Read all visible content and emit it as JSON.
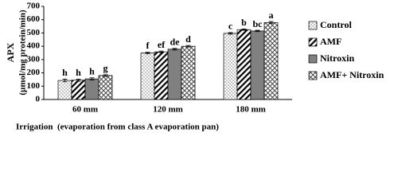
{
  "chart_data": {
    "type": "bar",
    "ylabel": [
      "APX",
      "(µmol/mg protein/min)"
    ],
    "xlabel": "Irrigation  (evaporation from class A evaporation pan)",
    "categories": [
      "60 mm",
      "120 mm",
      "180 mm"
    ],
    "ylim": [
      0,
      700
    ],
    "yticks": [
      0,
      100,
      200,
      300,
      400,
      500,
      600,
      700
    ],
    "series": [
      {
        "name": "Control",
        "color": "#ffffff",
        "pattern": "dots",
        "values": [
          143,
          350,
          497
        ],
        "errors": [
          10,
          6,
          6
        ],
        "letters": [
          "h",
          "f",
          "c"
        ]
      },
      {
        "name": "AMF",
        "color": "#ffffff",
        "pattern": "diagonal",
        "values": [
          145,
          358,
          525
        ],
        "errors": [
          8,
          6,
          5
        ],
        "letters": [
          "h",
          "ef",
          "b"
        ]
      },
      {
        "name": "Nitroxin",
        "color": "#808080",
        "pattern": "solid",
        "values": [
          155,
          378,
          515
        ],
        "errors": [
          8,
          6,
          5
        ],
        "letters": [
          "h",
          "de",
          "bc"
        ]
      },
      {
        "name": "AMF+ Nitroxin",
        "color": "#ffffff",
        "pattern": "crosshatch",
        "values": [
          180,
          400,
          578
        ],
        "errors": [
          6,
          6,
          8
        ],
        "letters": [
          "g",
          "d",
          "a"
        ]
      }
    ]
  }
}
